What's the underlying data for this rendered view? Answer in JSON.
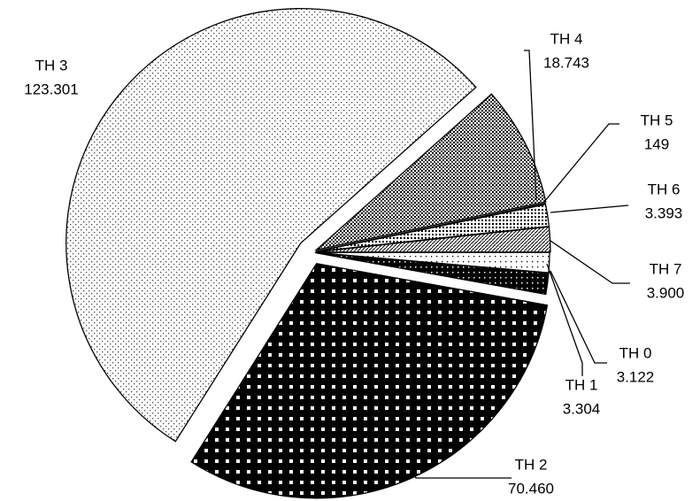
{
  "chart_data": {
    "type": "pie",
    "categories": [
      "TH 0",
      "TH 1",
      "TH 2",
      "TH 3",
      "TH 4",
      "TH 5",
      "TH 6",
      "TH 7"
    ],
    "values": [
      3122,
      3304,
      70460,
      123301,
      18743,
      149,
      3393,
      3900
    ],
    "value_labels": [
      "3.122",
      "3.304",
      "70.460",
      "123.301",
      "18.743",
      "149",
      "3.393",
      "3.900"
    ]
  }
}
